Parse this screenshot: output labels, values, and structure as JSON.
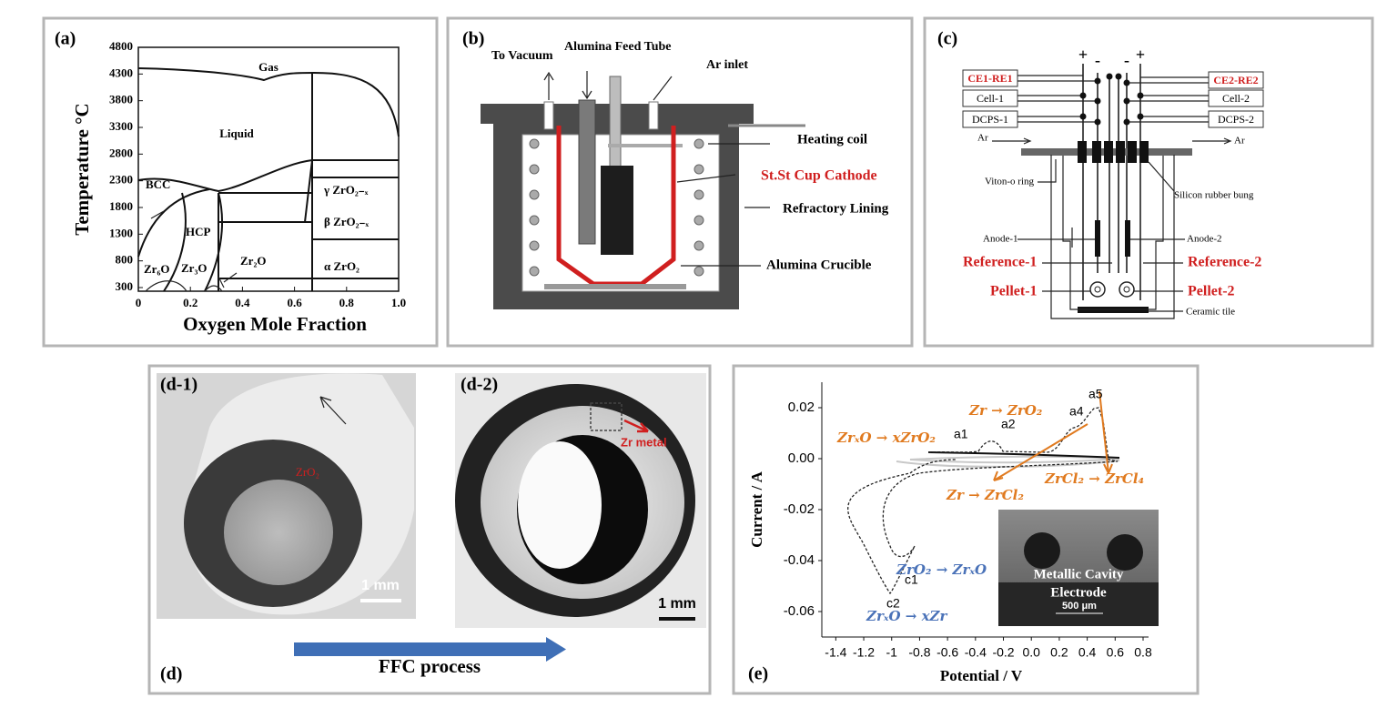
{
  "panels": {
    "a": {
      "label": "(a)",
      "y_axis_label": "Temperature °C",
      "x_axis_label": "Oxygen Mole Fraction",
      "xlim": [
        0,
        1
      ],
      "ylim": [
        300,
        4800
      ],
      "xticks": [
        0,
        0.2,
        0.4,
        0.6,
        0.8,
        {
          "value": 1,
          "label": "1.0"
        }
      ],
      "yticks": [
        300,
        800,
        1300,
        1800,
        2300,
        2800,
        3300,
        3800,
        4300,
        4800
      ],
      "regions": [
        "Gas",
        "Liquid",
        "BCC",
        "HCP",
        "γ ZrO₂₋ₓ",
        "β ZrO₂₋ₓ",
        "α ZrO₂",
        "Zr₆O",
        "Zr₃O",
        "Zr₂O"
      ]
    },
    "b": {
      "label": "(b)",
      "texts": [
        "To Vacuum",
        "Alumina Feed Tube",
        "Ar inlet",
        "Heating coil",
        "St.St Cup Cathode",
        "Refractory Lining",
        "Alumina Crucible"
      ]
    },
    "c": {
      "label": "(c)",
      "polarity": [
        "+",
        "-",
        "-",
        "+"
      ],
      "left_boxes": [
        "CE1-RE1",
        "Cell-1",
        "DCPS-1"
      ],
      "right_boxes": [
        "CE2-RE2",
        "Cell-2",
        "DCPS-2"
      ],
      "texts": [
        "Ar",
        "Ar",
        "Viton-o ring",
        "Silicon rubber bung",
        "Anode-1",
        "Anode-2",
        "Reference-1",
        "Reference-2",
        "Pellet-1",
        "Pellet-2",
        "Ceramic tile"
      ]
    },
    "d": {
      "label": "(d)",
      "sub_labels": [
        "(d-1)",
        "(d-2)"
      ],
      "texts": [
        "ZrO₂",
        "Zr metal",
        "1 mm",
        "1 mm"
      ],
      "arrow_text": "FFC process"
    },
    "e": {
      "label": "(e)",
      "y_axis_label": "Current / A",
      "x_axis_label": "Potential / V",
      "xlim": [
        -1.5,
        0.8
      ],
      "ylim": [
        -0.07,
        0.03
      ],
      "xticks": [
        -1.4,
        -1.2,
        -1,
        -0.8,
        -0.6,
        -0.4,
        -0.2,
        {
          "value": 0,
          "label": "0.0"
        },
        0.2,
        0.4,
        0.6,
        0.8
      ],
      "yticks": [
        -0.06,
        -0.04,
        -0.02,
        {
          "value": 0,
          "label": "0.00"
        },
        0.02
      ],
      "annotations": [
        "Zr → ZrO₂",
        "ZrₓO → xZrO₂",
        "a1",
        "a2",
        "a4",
        "a5",
        "Zr → ZrCl₂",
        "ZrCl₂ → ZrCl₄",
        "ZrO₂ → ZrₓO",
        "c1",
        "c2",
        "ZrₓO → xZr"
      ],
      "inset_texts": [
        "Metallic Cavity",
        "Electrode",
        "500 μm"
      ]
    }
  }
}
